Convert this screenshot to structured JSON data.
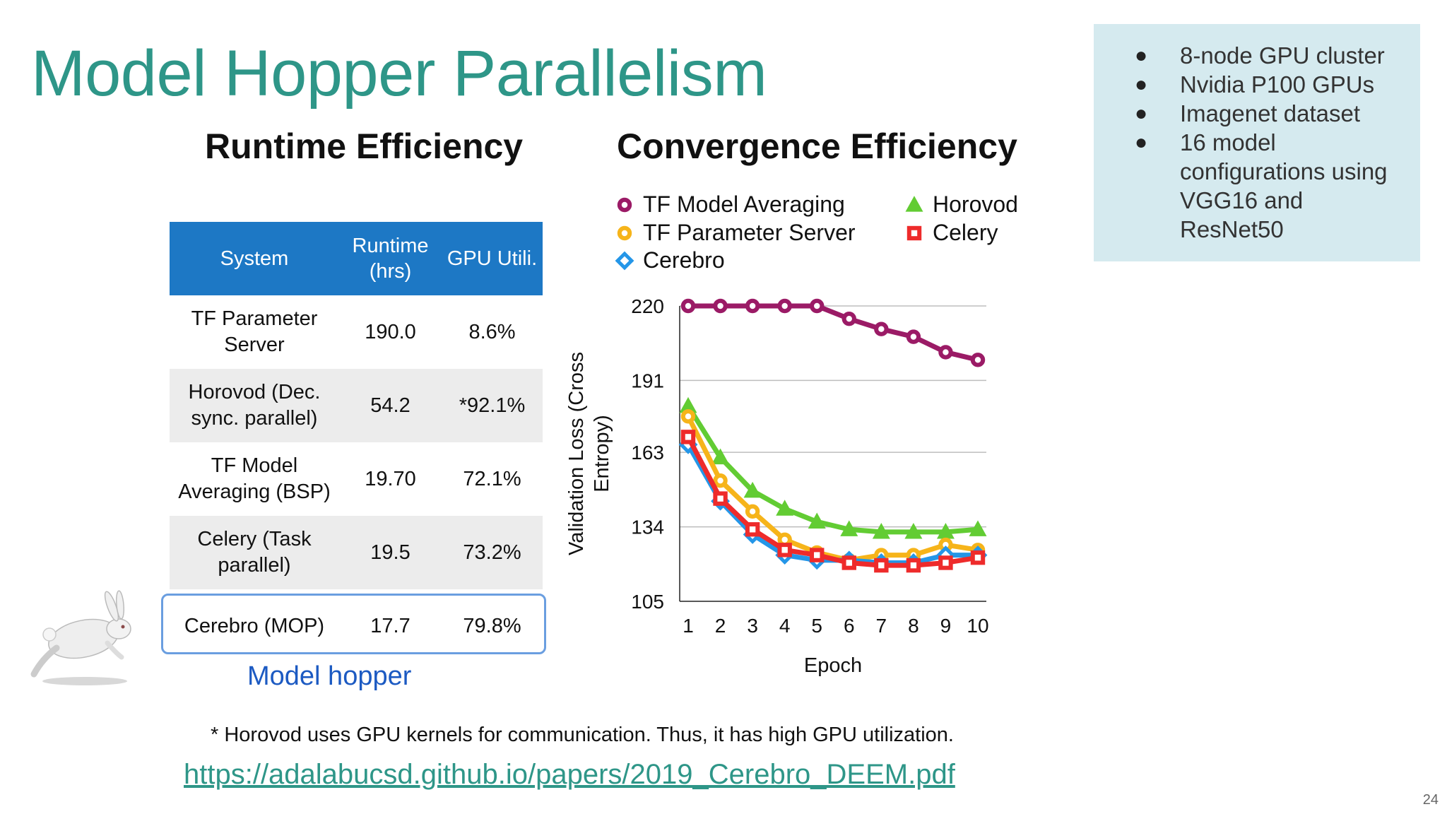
{
  "slide": {
    "title": "Model Hopper Parallelism",
    "page_number": "24"
  },
  "runtime": {
    "heading": "Runtime Efficiency",
    "columns": [
      "System",
      "Runtime\n(hrs)",
      "GPU Utili."
    ],
    "rows": [
      {
        "system": "TF Parameter Server",
        "runtime": "190.0",
        "gpu": "8.6%"
      },
      {
        "system": "Horovod (Dec. sync. parallel)",
        "runtime": "54.2",
        "gpu": "*92.1%"
      },
      {
        "system": "TF Model Averaging (BSP)",
        "runtime": "19.70",
        "gpu": "72.1%"
      },
      {
        "system": "Celery (Task parallel)",
        "runtime": "19.5",
        "gpu": "73.2%"
      },
      {
        "system": "Cerebro (MOP)",
        "runtime": "17.7",
        "gpu": "79.8%"
      }
    ],
    "highlight_label": "Model hopper"
  },
  "convergence": {
    "heading": "Convergence Efficiency"
  },
  "info": {
    "bullets": [
      "8-node GPU cluster",
      "Nvidia P100 GPUs",
      "Imagenet dataset",
      "16 model configurations using VGG16 and ResNet50"
    ]
  },
  "footnote": "* Horovod uses GPU kernels for communication. Thus, it has high GPU utilization.",
  "link": "https://adalabucsd.github.io/papers/2019_Cerebro_DEEM.pdf",
  "chart_data": {
    "type": "line",
    "title": "Convergence Efficiency",
    "xlabel": "Epoch",
    "ylabel": "Validation Loss (Cross Entropy)",
    "x": [
      1,
      2,
      3,
      4,
      5,
      6,
      7,
      8,
      9,
      10
    ],
    "ylim": [
      105,
      220
    ],
    "yticks": [
      105,
      134,
      163,
      191,
      220
    ],
    "xticks": [
      1,
      2,
      3,
      4,
      5,
      6,
      7,
      8,
      9,
      10
    ],
    "grid": true,
    "legend_position": "top",
    "series": [
      {
        "name": "TF Model Averaging",
        "color": "#9b1b66",
        "marker": "circle",
        "values": [
          220,
          220,
          220,
          220,
          220,
          215,
          211,
          208,
          202,
          199
        ]
      },
      {
        "name": "TF Parameter Server",
        "color": "#f6b41a",
        "marker": "circle",
        "values": [
          177,
          152,
          140,
          129,
          124,
          121,
          123,
          123,
          127,
          125
        ]
      },
      {
        "name": "Cerebro",
        "color": "#2496e8",
        "marker": "diamond",
        "values": [
          166,
          144,
          131,
          123,
          121,
          121,
          120,
          120,
          123,
          123
        ]
      },
      {
        "name": "Horovod",
        "color": "#62cc33",
        "marker": "triangle",
        "values": [
          181,
          161,
          148,
          141,
          136,
          133,
          132,
          132,
          132,
          133
        ]
      },
      {
        "name": "Celery",
        "color": "#ee2b2b",
        "marker": "square",
        "values": [
          169,
          145,
          133,
          125,
          123,
          120,
          119,
          119,
          120,
          122
        ]
      }
    ]
  }
}
